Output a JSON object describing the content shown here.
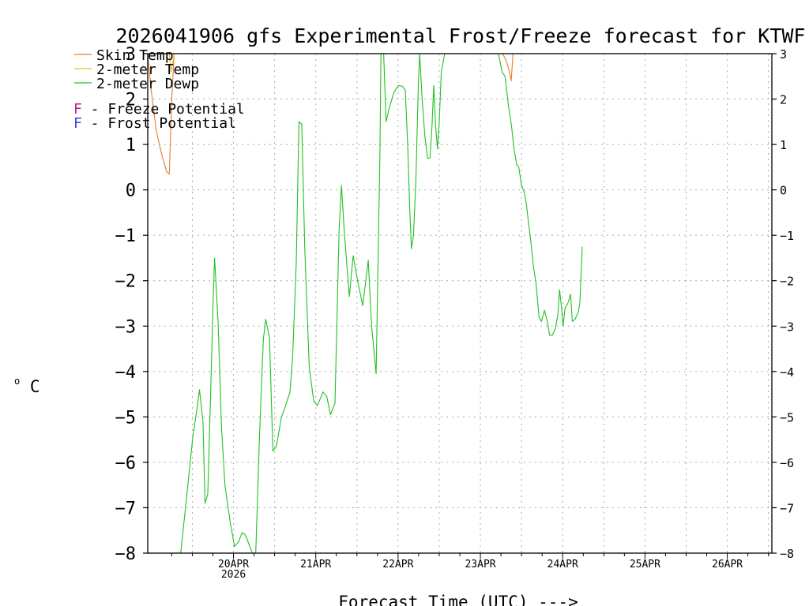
{
  "chart_data": {
    "type": "line",
    "title": "2026041906 gfs Experimental Frost/Freeze forecast for KTWF",
    "xlabel": "Forecast Time (UTC) --->",
    "ylabel": "°C",
    "ylabel_unit": "C",
    "ylabel_degree": "o",
    "ylim": [
      -8,
      3
    ],
    "xlim_hours": [
      -7,
      175
    ],
    "yticks": [
      -8,
      -7,
      -6,
      -5,
      -4,
      -3,
      -2,
      -1,
      0,
      1,
      2,
      3
    ],
    "ytick_labels": [
      "−8",
      "−7",
      "−6",
      "−5",
      "−4",
      "−3",
      "−2",
      "−1",
      "0",
      "1",
      "2",
      "3"
    ],
    "grid": true,
    "xticks": [
      {
        "h": 18,
        "label": "20APR",
        "sub": "2026"
      },
      {
        "h": 42,
        "label": "21APR",
        "sub": ""
      },
      {
        "h": 66,
        "label": "22APR",
        "sub": ""
      },
      {
        "h": 90,
        "label": "23APR",
        "sub": ""
      },
      {
        "h": 114,
        "label": "24APR",
        "sub": ""
      },
      {
        "h": 138,
        "label": "25APR",
        "sub": ""
      },
      {
        "h": 162,
        "label": "26APR",
        "sub": ""
      }
    ],
    "legend": {
      "placement": "top-left",
      "entries": [
        {
          "name": "Skin Temp",
          "color": "#e87b2c"
        },
        {
          "name": "2-meter Temp",
          "color": "#e8c020"
        },
        {
          "name": "2-meter Dewp",
          "color": "#22c022"
        }
      ],
      "potentials": [
        {
          "letter": "F",
          "text": " - Freeze Potential",
          "color": "#c0208c"
        },
        {
          "letter": "F",
          "text": " - Frost Potential",
          "color": "#3c3cf0"
        }
      ]
    },
    "series": [
      {
        "name": "Skin Temp",
        "color": "#e87b2c",
        "segments": [
          [
            [
              -7.0,
              3.0
            ],
            [
              -6.0,
              2.2
            ],
            [
              -4.5,
              1.3
            ],
            [
              -3.0,
              0.8
            ],
            [
              -1.5,
              0.4
            ],
            [
              -0.7,
              0.35
            ],
            [
              0.0,
              2.0
            ],
            [
              0.7,
              3.0
            ]
          ],
          [
            [
              96.5,
              3.0
            ],
            [
              97.5,
              2.85
            ],
            [
              98.5,
              2.6
            ],
            [
              99.0,
              2.4
            ],
            [
              99.5,
              3.0
            ]
          ]
        ]
      },
      {
        "name": "2-meter Temp",
        "color": "#e8c020",
        "segments": [
          [
            [
              -0.7,
              3.0
            ],
            [
              -0.2,
              2.6
            ],
            [
              0.3,
              2.8
            ],
            [
              0.7,
              3.0
            ]
          ]
        ]
      },
      {
        "name": "2-meter Dewp",
        "color": "#22c022",
        "segments": [
          [
            [
              2.6,
              -8.0
            ],
            [
              4.3,
              -6.8
            ],
            [
              6.2,
              -5.4
            ],
            [
              7.4,
              -4.8
            ],
            [
              8.1,
              -4.4
            ],
            [
              9.1,
              -5.1
            ],
            [
              9.7,
              -6.9
            ],
            [
              10.5,
              -6.7
            ],
            [
              11.3,
              -4.6
            ],
            [
              12.0,
              -2.6
            ],
            [
              12.5,
              -1.5
            ],
            [
              13.5,
              -2.9
            ],
            [
              14.5,
              -5.2
            ],
            [
              15.5,
              -6.5
            ],
            [
              17.0,
              -7.3
            ],
            [
              18.3,
              -7.85
            ],
            [
              19.5,
              -7.75
            ],
            [
              20.5,
              -7.55
            ],
            [
              21.5,
              -7.6
            ],
            [
              22.5,
              -7.8
            ],
            [
              23.5,
              -8.0
            ],
            [
              24.5,
              -8.0
            ],
            [
              25.5,
              -5.6
            ],
            [
              26.7,
              -3.3
            ],
            [
              27.4,
              -2.85
            ],
            [
              28.5,
              -3.25
            ],
            [
              29.5,
              -5.75
            ],
            [
              30.5,
              -5.65
            ],
            [
              32.0,
              -5.0
            ],
            [
              33.0,
              -4.8
            ],
            [
              34.5,
              -4.45
            ],
            [
              35.3,
              -3.6
            ],
            [
              36.3,
              -1.6
            ],
            [
              37.1,
              1.5
            ],
            [
              37.9,
              1.45
            ],
            [
              38.8,
              -1.3
            ],
            [
              40.1,
              -3.9
            ],
            [
              41.4,
              -4.65
            ],
            [
              42.5,
              -4.75
            ],
            [
              44.1,
              -4.45
            ],
            [
              45.2,
              -4.55
            ],
            [
              46.3,
              -4.95
            ],
            [
              47.6,
              -4.7
            ],
            [
              48.8,
              -0.9
            ],
            [
              49.5,
              0.1
            ],
            [
              50.3,
              -0.9
            ],
            [
              51.8,
              -2.35
            ],
            [
              52.9,
              -1.45
            ],
            [
              54.2,
              -2.0
            ],
            [
              55.7,
              -2.55
            ],
            [
              57.3,
              -1.55
            ],
            [
              58.3,
              -3.0
            ],
            [
              59.6,
              -4.05
            ],
            [
              60.7,
              0.8
            ],
            [
              61.0,
              3.0
            ],
            [
              61.8,
              3.0
            ],
            [
              62.5,
              1.5
            ],
            [
              63.4,
              1.8
            ],
            [
              64.8,
              2.15
            ],
            [
              66.1,
              2.3
            ],
            [
              67.3,
              2.28
            ],
            [
              68.1,
              2.2
            ],
            [
              68.8,
              1.0
            ],
            [
              69.4,
              -0.4
            ],
            [
              69.9,
              -1.3
            ],
            [
              70.5,
              -1.0
            ],
            [
              71.2,
              0.2
            ],
            [
              71.9,
              2.3
            ],
            [
              72.3,
              3.0
            ],
            [
              73.0,
              2.0
            ],
            [
              73.8,
              1.2
            ],
            [
              74.6,
              0.7
            ],
            [
              75.3,
              0.7
            ],
            [
              75.9,
              1.4
            ],
            [
              76.4,
              2.3
            ],
            [
              76.9,
              1.45
            ],
            [
              77.5,
              0.9
            ],
            [
              78.0,
              1.5
            ],
            [
              78.6,
              2.6
            ],
            [
              79.6,
              3.0
            ],
            [
              80.8,
              3.0
            ],
            [
              81.7,
              3.0
            ],
            [
              82.3,
              3.0
            ],
            [
              82.9,
              3.0
            ],
            [
              83.5,
              3.0
            ],
            [
              84.7,
              3.0
            ],
            [
              86.2,
              3.0
            ],
            [
              87.4,
              3.0
            ],
            [
              88.6,
              3.0
            ],
            [
              89.8,
              3.0
            ],
            [
              91.0,
              3.0
            ],
            [
              92.3,
              3.0
            ],
            [
              93.8,
              3.0
            ],
            [
              95.3,
              3.0
            ],
            [
              96.3,
              2.6
            ],
            [
              97.2,
              2.5
            ],
            [
              98.2,
              1.85
            ],
            [
              99.1,
              1.4
            ],
            [
              99.8,
              0.9
            ],
            [
              100.6,
              0.55
            ],
            [
              101.2,
              0.5
            ],
            [
              102.0,
              0.1
            ],
            [
              102.8,
              -0.05
            ],
            [
              103.4,
              -0.3
            ],
            [
              104.0,
              -0.7
            ],
            [
              104.8,
              -1.2
            ],
            [
              105.5,
              -1.7
            ],
            [
              106.2,
              -2.05
            ],
            [
              107.1,
              -2.8
            ],
            [
              107.8,
              -2.9
            ],
            [
              108.7,
              -2.65
            ],
            [
              109.5,
              -2.9
            ],
            [
              110.2,
              -3.2
            ],
            [
              111.0,
              -3.2
            ],
            [
              111.9,
              -3.05
            ],
            [
              112.6,
              -2.75
            ],
            [
              113.1,
              -2.2
            ],
            [
              113.6,
              -2.55
            ],
            [
              114.1,
              -3.0
            ],
            [
              114.7,
              -2.6
            ],
            [
              115.5,
              -2.5
            ],
            [
              116.3,
              -2.3
            ],
            [
              116.8,
              -2.9
            ],
            [
              117.6,
              -2.85
            ],
            [
              118.5,
              -2.7
            ],
            [
              119.0,
              -2.5
            ],
            [
              119.7,
              -1.25
            ]
          ]
        ]
      }
    ]
  }
}
